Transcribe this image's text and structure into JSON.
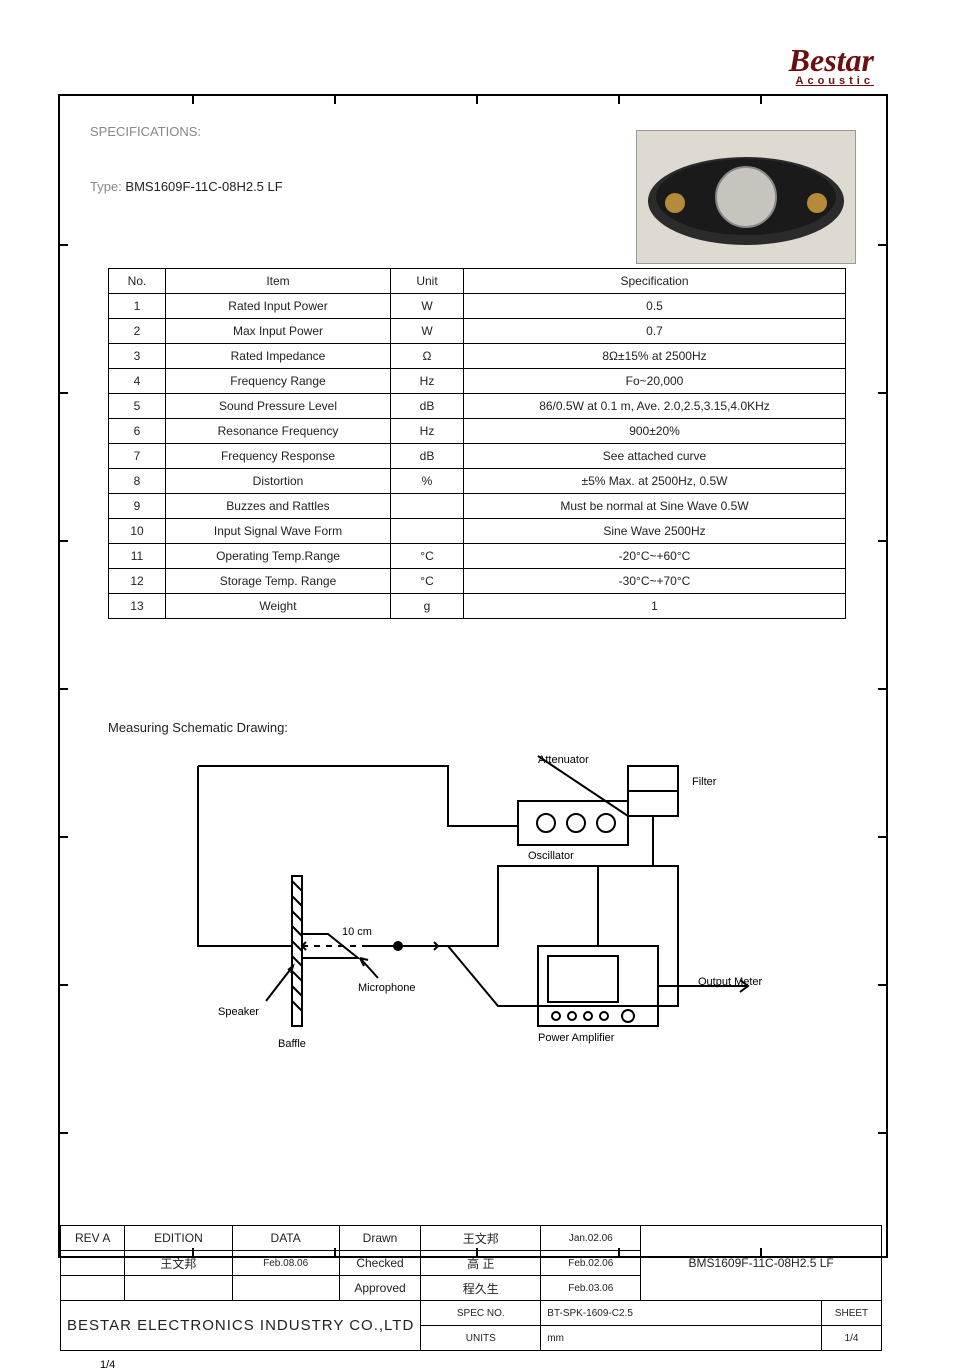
{
  "brand": {
    "name": "Bestar",
    "sub": "Acoustic"
  },
  "header": {
    "specs_label": "SPECIFICATIONS:",
    "type_label": "Type:",
    "type_value": "BMS1609F-11C-08H2.5 LF"
  },
  "specs": {
    "head": {
      "no": "No.",
      "item": "Item",
      "unit": "Unit",
      "spec": "Specification"
    },
    "num_label_center": true
  },
  "specs_rows": [
    {
      "no": "1",
      "item": "Rated Input Power",
      "unit": "W",
      "spec": "0.5"
    },
    {
      "no": "2",
      "item": "Max Input Power",
      "unit": "W",
      "spec": "0.7"
    },
    {
      "no": "3",
      "item": "Rated Impedance",
      "unit": "Ω",
      "spec": "8Ω±15% at 2500Hz"
    },
    {
      "no": "4",
      "item": "Frequency Range",
      "unit": "Hz",
      "spec": "Fo~20,000"
    },
    {
      "no": "5",
      "item": "Sound Pressure Level",
      "unit": "dB",
      "spec": "86/0.5W at 0.1 m, Ave. 2.0,2.5,3.15,4.0KHz"
    },
    {
      "no": "6",
      "item": "Resonance Frequency",
      "unit": "Hz",
      "spec": "900±20%"
    },
    {
      "no": "7",
      "item": "Frequency Response",
      "unit": "dB",
      "spec": "See attached curve"
    },
    {
      "no": "8",
      "item": "Distortion",
      "unit": "%",
      "spec": "±5% Max. at 2500Hz, 0.5W"
    },
    {
      "no": "9",
      "item": "Buzzes and Rattles",
      "unit": "",
      "spec": "Must be normal at Sine Wave 0.5W"
    },
    {
      "no": "10",
      "item": "Input Signal Wave Form",
      "unit": "",
      "spec": "Sine Wave 2500Hz"
    },
    {
      "no": "11",
      "item": "Operating Temp.Range",
      "unit": "°C",
      "spec": "-20°C~+60°C"
    },
    {
      "no": "12",
      "item": "Storage Temp. Range",
      "unit": "°C",
      "spec": "-30°C~+70°C"
    },
    {
      "no": "13",
      "item": "Weight",
      "unit": "g",
      "spec": "1"
    }
  ],
  "after_specs_label": "Measuring Schematic Drawing:",
  "diagram": {
    "labels": {
      "oscillator": "Oscillator",
      "attenuator": "Attenuator",
      "filter": "Filter",
      "microphone": "Microphone",
      "speaker": "Speaker",
      "baffle": "Baffle",
      "amplifier": "Power Amplifier",
      "meter": "Output Meter",
      "distance": "10 cm"
    }
  },
  "titleblock": {
    "rows": [
      [
        "REV A",
        "EDITION",
        "DATA",
        "Drawn",
        "王文邦",
        "Jan.02.06",
        "BMS1609F-11C-08H2.5 LF"
      ],
      [
        "",
        "王文邦",
        "Feb.08.06",
        "Checked",
        "高 正",
        "Feb.02.06",
        ""
      ],
      [
        "",
        "",
        "",
        "Approved",
        "程久生",
        "Feb.03.06",
        ""
      ]
    ],
    "company": "BESTAR ELECTRONICS INDUSTRY CO.,LTD",
    "sheet_label": "SHEET",
    "sheet_value": "1/4",
    "units_label": "UNITS",
    "units_value": "mm",
    "spec_no_label": "SPEC NO.",
    "spec_no_value": "BT-SPK-1609-C2.5"
  },
  "page": "1/4"
}
